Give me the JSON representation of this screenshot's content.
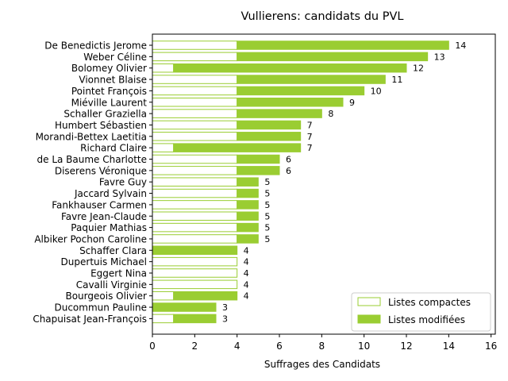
{
  "chart_data": {
    "type": "bar",
    "orientation": "horizontal",
    "stacked": true,
    "title": "Vullierens: candidats du PVL",
    "xlabel": "Suffrages des Candidats",
    "ylabel": "",
    "xlim": [
      0,
      16.2
    ],
    "xticks": [
      0,
      2,
      4,
      6,
      8,
      10,
      12,
      14,
      16
    ],
    "grid": false,
    "legend_position": "lower-right",
    "colors": {
      "bar": "#9acd32",
      "edge": "#9acd32",
      "background": "#ffffff"
    },
    "categories": [
      "De Benedictis Jerome",
      "Weber Céline",
      "Bolomey Olivier",
      "Vionnet Blaise",
      "Pointet François",
      "Miéville Laurent",
      "Schaller Graziella",
      "Humbert Sébastien",
      "Morandi-Bettex Laetitia",
      "Richard Claire",
      "de La Baume Charlotte",
      "Diserens Véronique",
      "Favre Guy",
      "Jaccard Sylvain",
      "Fankhauser Carmen",
      "Favre Jean-Claude",
      "Paquier Mathias",
      "Albiker Pochon Caroline",
      "Schaffer Clara",
      "Dupertuis Michael",
      "Eggert Nina",
      "Cavalli Virginie",
      "Bourgeois Olivier",
      "Ducommun Pauline",
      "Chapuisat Jean-François"
    ],
    "series": [
      {
        "name": "Listes compactes",
        "style": "outline",
        "values": [
          4,
          4,
          1,
          4,
          4,
          4,
          4,
          4,
          4,
          1,
          4,
          4,
          4,
          4,
          4,
          4,
          4,
          4,
          0,
          4,
          4,
          4,
          1,
          0,
          1
        ]
      },
      {
        "name": "Listes modifiées",
        "style": "filled",
        "values": [
          10,
          9,
          11,
          7,
          6,
          5,
          4,
          3,
          3,
          6,
          2,
          2,
          1,
          1,
          1,
          1,
          1,
          1,
          4,
          0,
          0,
          0,
          3,
          3,
          2
        ]
      }
    ],
    "totals": [
      14,
      13,
      12,
      11,
      10,
      9,
      8,
      7,
      7,
      7,
      6,
      6,
      5,
      5,
      5,
      5,
      5,
      5,
      4,
      4,
      4,
      4,
      4,
      3,
      3
    ]
  }
}
